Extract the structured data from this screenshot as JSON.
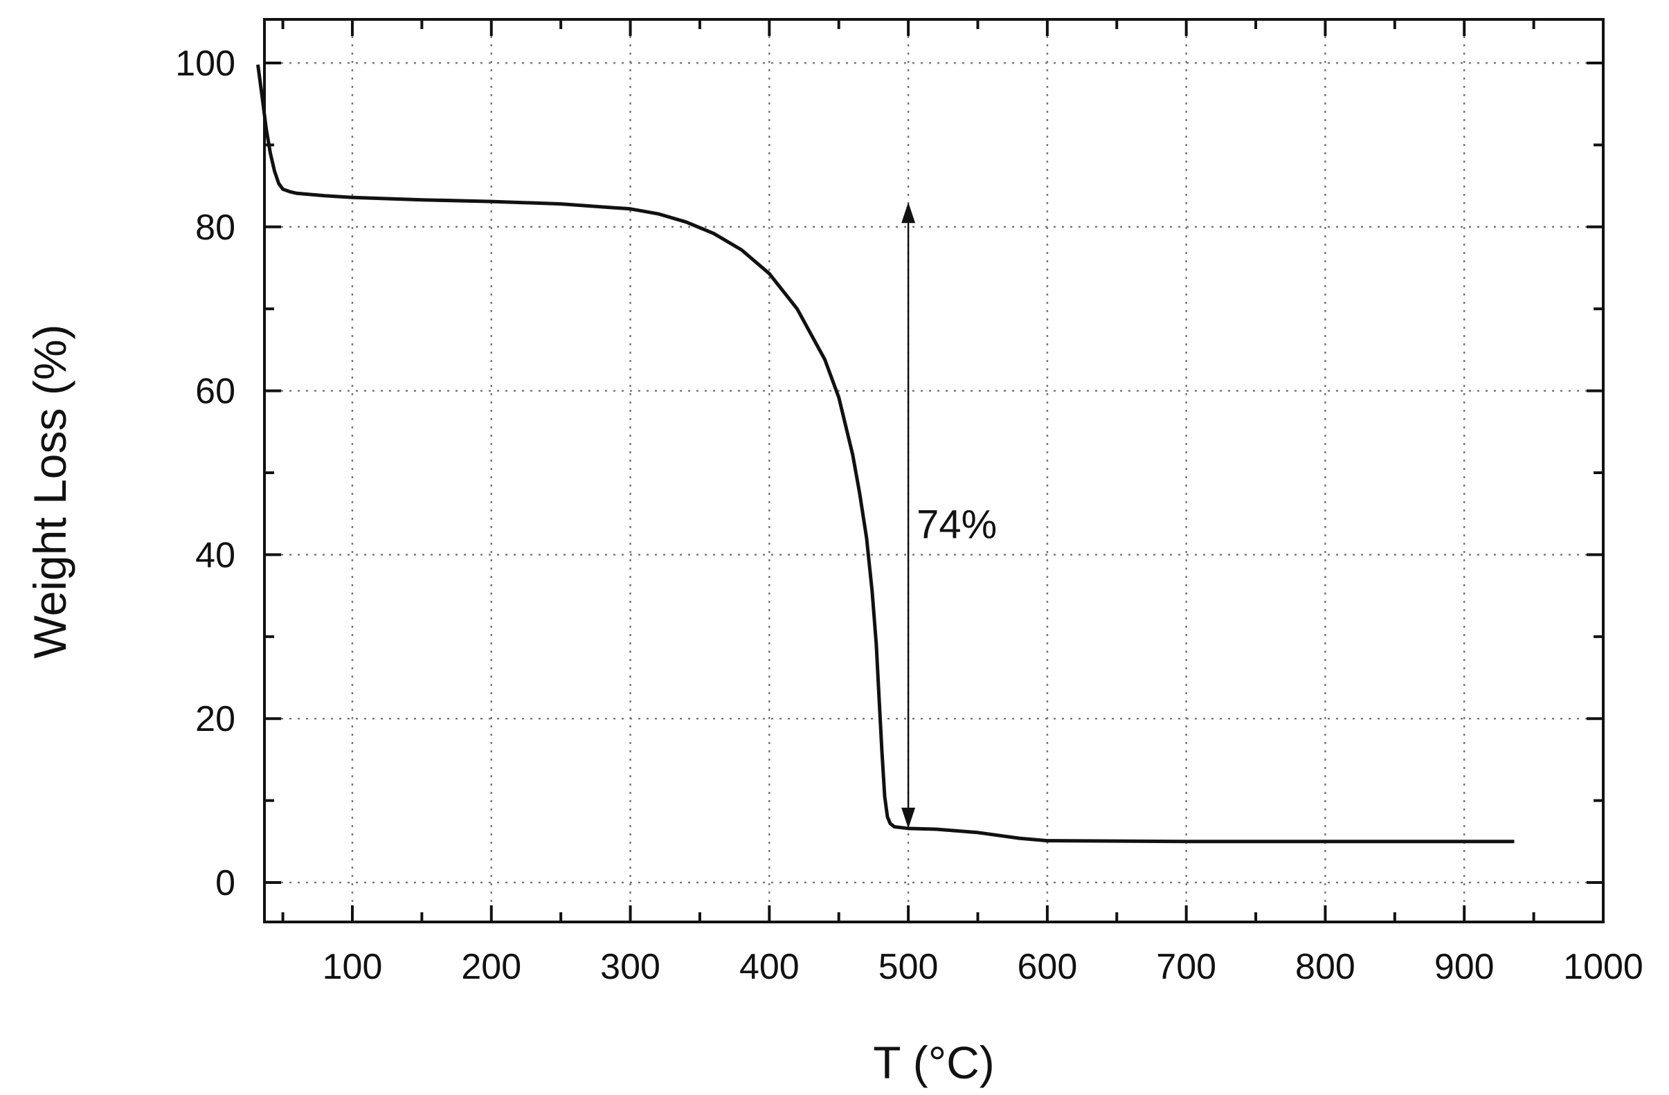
{
  "chart_data": {
    "type": "line",
    "title": "",
    "xlabel": "T (°C)",
    "ylabel": "Weight Loss (%)",
    "xlim": [
      20,
      1000
    ],
    "ylim": [
      -5,
      105
    ],
    "x_ticks": [
      100,
      200,
      300,
      400,
      500,
      600,
      700,
      800,
      900,
      1000
    ],
    "y_ticks": [
      0,
      20,
      40,
      60,
      80,
      100
    ],
    "x_tick_labels": [
      "100",
      "200",
      "300",
      "400",
      "500",
      "600",
      "700",
      "800",
      "900",
      "1000"
    ],
    "y_tick_labels": [
      "0",
      "20",
      "40",
      "60",
      "80",
      "100"
    ],
    "grid": true,
    "legend": "none",
    "series": [
      {
        "x": [
          32,
          35,
          38,
          41,
          44,
          47,
          50,
          55,
          60,
          80,
          100,
          150,
          200,
          250,
          300,
          320,
          340,
          360,
          380,
          400,
          420,
          440,
          450,
          460,
          465,
          470,
          474,
          477,
          479,
          481,
          483,
          485,
          487,
          490,
          495,
          500,
          520,
          550,
          580,
          600,
          700,
          800,
          900,
          936
        ],
        "y": [
          99.8,
          96.0,
          92.0,
          89.0,
          86.8,
          85.3,
          84.6,
          84.3,
          84.1,
          83.8,
          83.6,
          83.3,
          83.1,
          82.8,
          82.2,
          81.6,
          80.6,
          79.2,
          77.2,
          74.3,
          70.0,
          63.8,
          59.2,
          52.2,
          47.5,
          42.0,
          35.5,
          29.0,
          22.5,
          16.0,
          10.5,
          8.0,
          7.2,
          6.8,
          6.7,
          6.6,
          6.5,
          6.1,
          5.4,
          5.1,
          5.0,
          5.0,
          5.0,
          5.0
        ]
      }
    ],
    "annotations": [
      {
        "text": "74%",
        "x": 500,
        "y_from": 83,
        "y_to": 6.6
      }
    ]
  }
}
